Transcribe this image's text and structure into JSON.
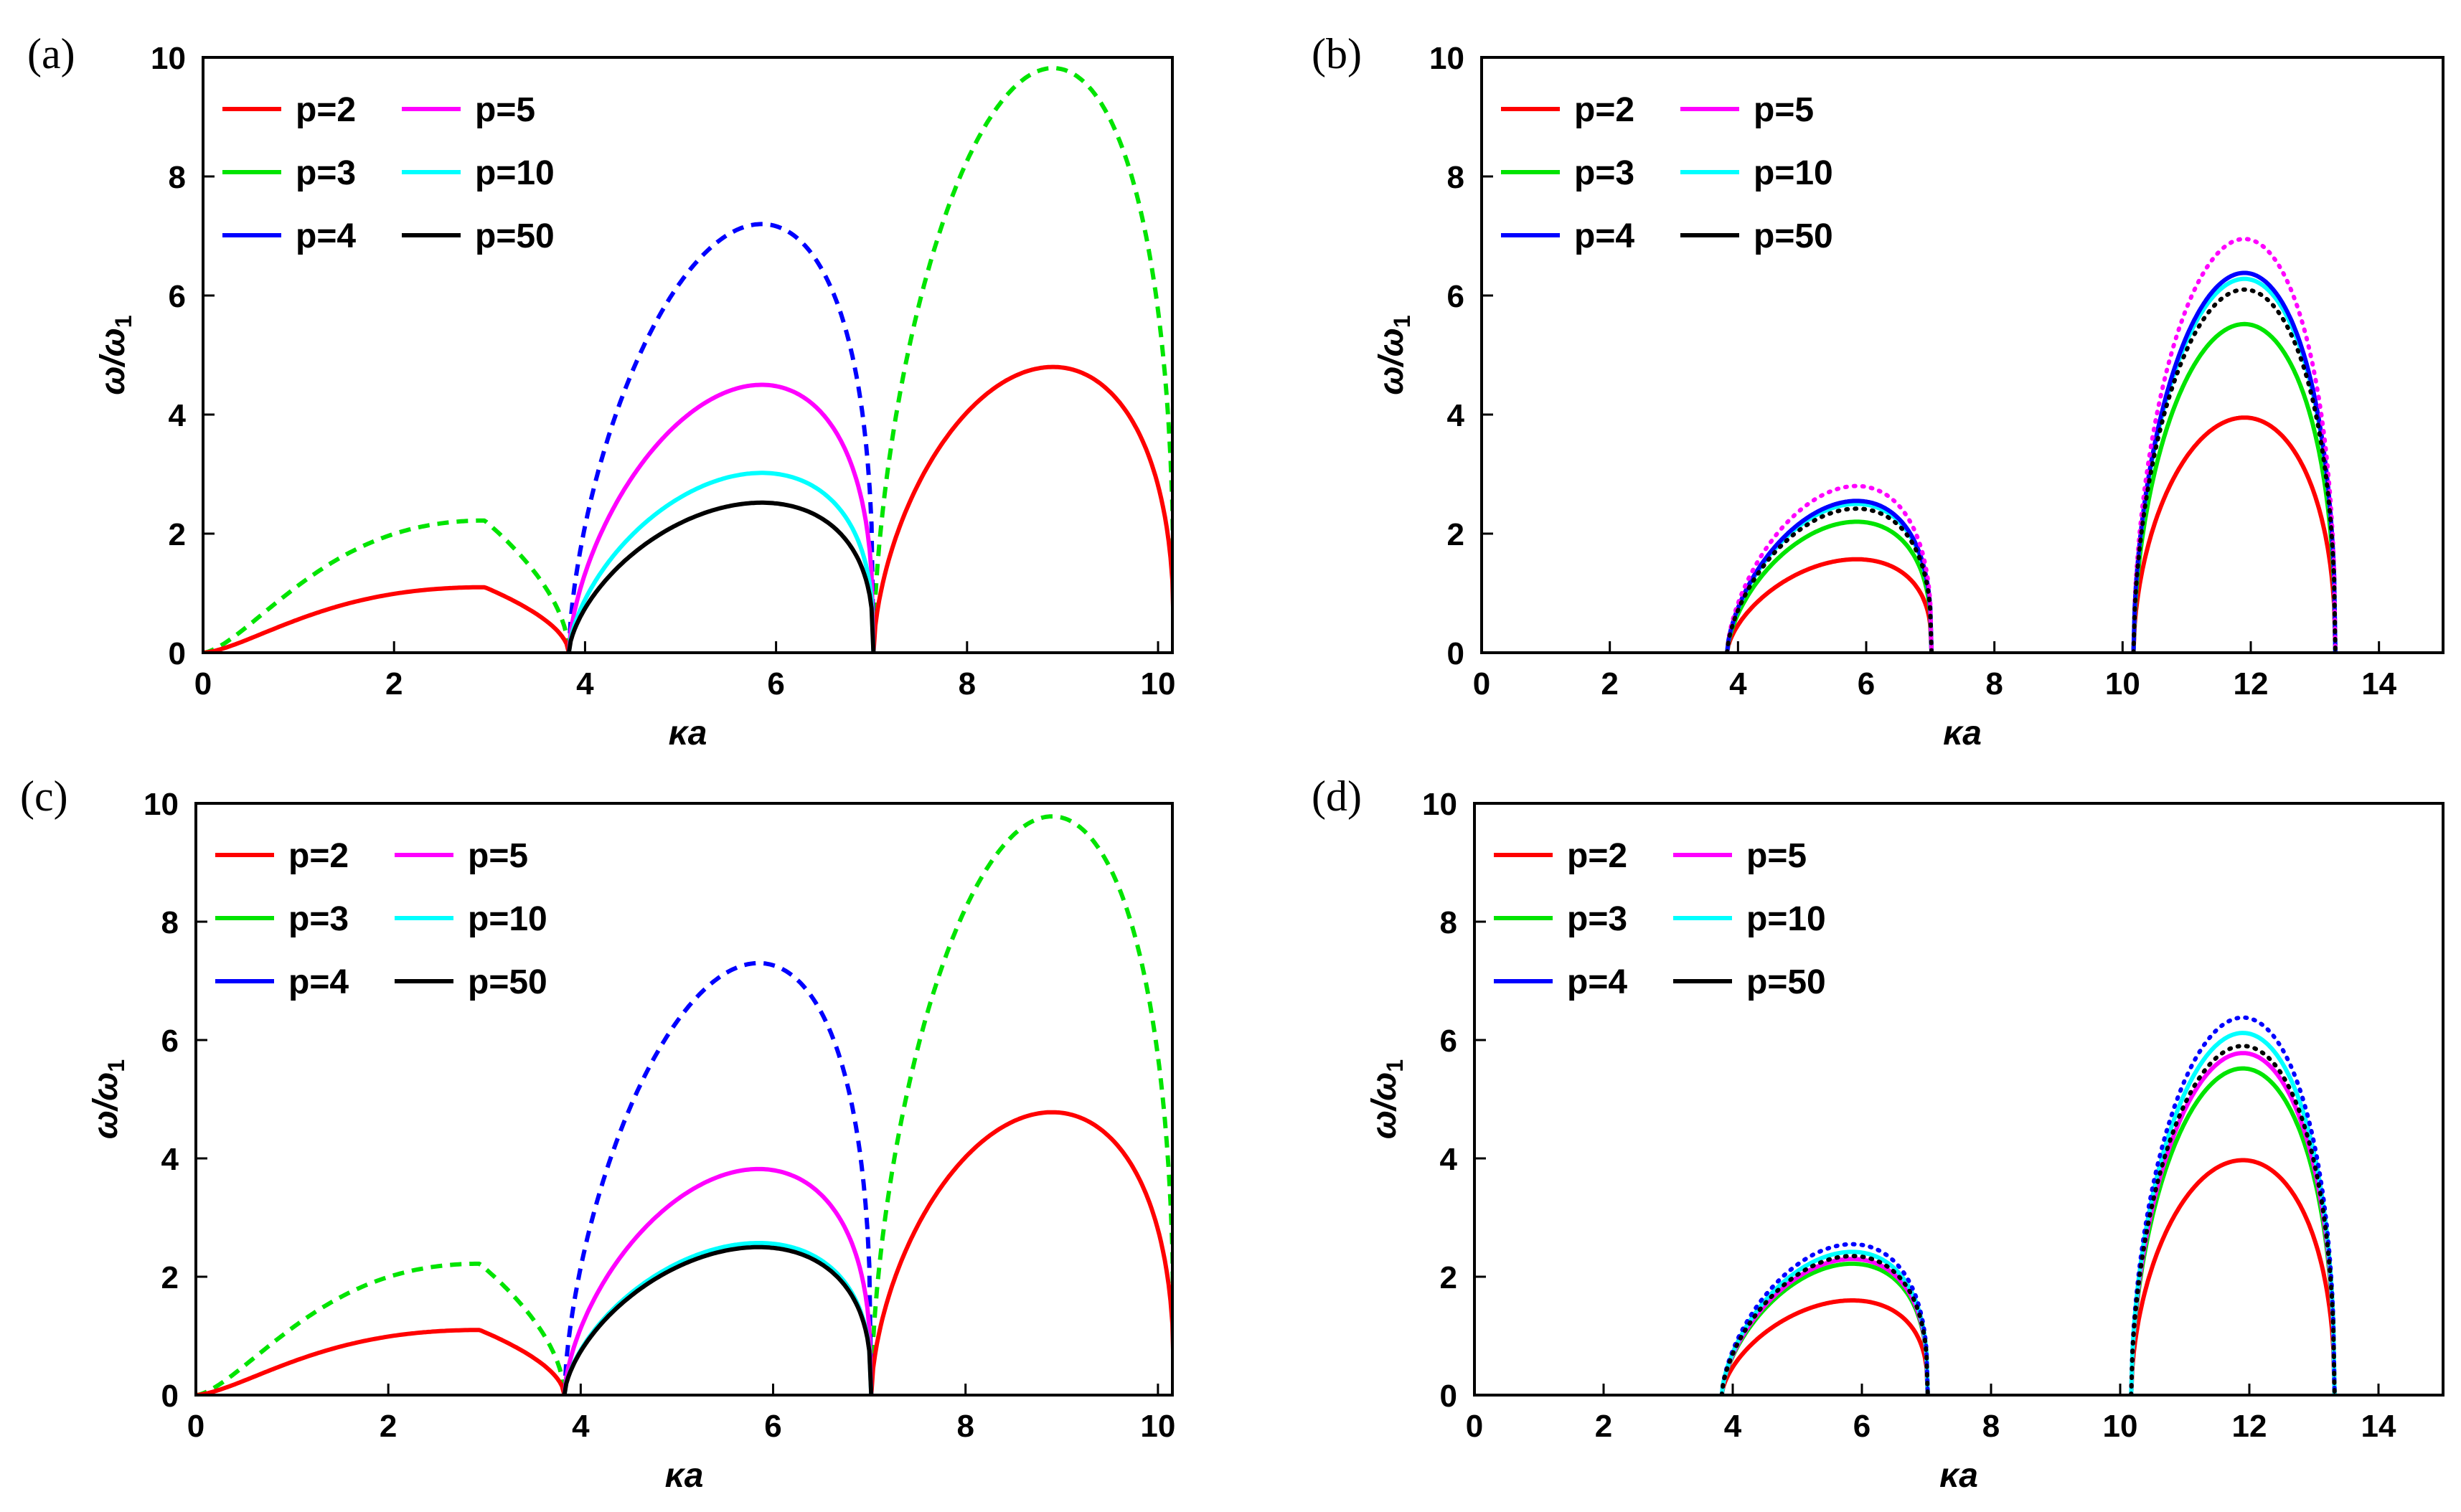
{
  "chart_data": [
    {
      "type": "line",
      "panel_label": "(a)",
      "xlabel": "κa",
      "ylabel": "ω/ω",
      "ylabel_sub": "1",
      "xlim": [
        0,
        10.15
      ],
      "ylim": [
        0,
        10
      ],
      "x_ticks": [
        0,
        2,
        4,
        6,
        8,
        10
      ],
      "y_ticks": [
        0,
        2,
        4,
        6,
        8,
        10
      ],
      "legend": [
        {
          "label": "p=2",
          "color": "#ff0000"
        },
        {
          "label": "p=3",
          "color": "#00e400"
        },
        {
          "label": "p=4",
          "color": "#0000ff"
        },
        {
          "label": "p=5",
          "color": "#ff00ff"
        },
        {
          "label": "p=10",
          "color": "#00ffff"
        },
        {
          "label": "p=50",
          "color": "#000000"
        }
      ],
      "series": [
        {
          "name": "p=3 (dashed)",
          "color": "#00e400",
          "dash": "dashed",
          "arches": [
            {
              "from": 0,
              "to": 3.83,
              "peak_x": 2.95,
              "peak_y": 2.22
            },
            {
              "from": 7.02,
              "to": 10.17,
              "peak_x": 8.9,
              "peak_y": 9.82
            }
          ]
        },
        {
          "name": "p=4 (dashed)",
          "color": "#0000ff",
          "dash": "dashed",
          "arches": [
            {
              "from": 3.83,
              "to": 7.02,
              "peak_x": 5.85,
              "peak_y": 7.2
            }
          ]
        },
        {
          "name": "p=2",
          "color": "#ff0000",
          "dash": "solid",
          "arches": [
            {
              "from": 0,
              "to": 3.83,
              "peak_x": 2.95,
              "peak_y": 1.1
            },
            {
              "from": 7.02,
              "to": 10.17,
              "peak_x": 8.9,
              "peak_y": 4.8
            }
          ]
        },
        {
          "name": "p=5",
          "color": "#ff00ff",
          "dash": "solid",
          "arches": [
            {
              "from": 3.83,
              "to": 7.02,
              "peak_x": 5.85,
              "peak_y": 4.5
            }
          ]
        },
        {
          "name": "p=10",
          "color": "#00ffff",
          "dash": "solid",
          "arches": [
            {
              "from": 3.83,
              "to": 7.02,
              "peak_x": 5.85,
              "peak_y": 3.02
            }
          ]
        },
        {
          "name": "p=50",
          "color": "#000000",
          "dash": "solid",
          "arches": [
            {
              "from": 3.83,
              "to": 7.02,
              "peak_x": 5.85,
              "peak_y": 2.52
            }
          ]
        }
      ]
    },
    {
      "type": "line",
      "panel_label": "(b)",
      "xlabel": "κa",
      "ylabel": "ω/ω",
      "ylabel_sub": "1",
      "xlim": [
        0,
        15
      ],
      "ylim": [
        0,
        10
      ],
      "x_ticks": [
        0,
        2,
        4,
        6,
        8,
        10,
        12,
        14
      ],
      "y_ticks": [
        0,
        2,
        4,
        6,
        8,
        10
      ],
      "legend": [
        {
          "label": "p=2",
          "color": "#ff0000"
        },
        {
          "label": "p=3",
          "color": "#00e400"
        },
        {
          "label": "p=4",
          "color": "#0000ff"
        },
        {
          "label": "p=5",
          "color": "#ff00ff"
        },
        {
          "label": "p=10",
          "color": "#00ffff"
        },
        {
          "label": "p=50",
          "color": "#000000"
        }
      ],
      "series": [
        {
          "name": "p=2",
          "color": "#ff0000",
          "dash": "solid",
          "arches": [
            {
              "from": 3.83,
              "to": 7.02,
              "peak_x": 5.85,
              "peak_y": 1.57
            },
            {
              "from": 10.17,
              "to": 13.32,
              "peak_x": 11.9,
              "peak_y": 3.95
            }
          ]
        },
        {
          "name": "p=3",
          "color": "#00e400",
          "dash": "solid",
          "arches": [
            {
              "from": 3.83,
              "to": 7.02,
              "peak_x": 5.85,
              "peak_y": 2.2
            },
            {
              "from": 10.17,
              "to": 13.32,
              "peak_x": 11.9,
              "peak_y": 5.52
            }
          ]
        },
        {
          "name": "p=10",
          "color": "#00ffff",
          "dash": "solid",
          "arches": [
            {
              "from": 3.83,
              "to": 7.02,
              "peak_x": 5.85,
              "peak_y": 2.5
            },
            {
              "from": 10.17,
              "to": 13.32,
              "peak_x": 11.9,
              "peak_y": 6.28
            }
          ]
        },
        {
          "name": "p=4",
          "color": "#0000ff",
          "dash": "solid",
          "arches": [
            {
              "from": 3.83,
              "to": 7.02,
              "peak_x": 5.85,
              "peak_y": 2.55
            },
            {
              "from": 10.17,
              "to": 13.32,
              "peak_x": 11.9,
              "peak_y": 6.38
            }
          ]
        },
        {
          "name": "p=5 (dotted)",
          "color": "#ff00ff",
          "dash": "dotted",
          "arches": [
            {
              "from": 3.83,
              "to": 7.02,
              "peak_x": 5.85,
              "peak_y": 2.8
            },
            {
              "from": 10.17,
              "to": 13.32,
              "peak_x": 11.9,
              "peak_y": 6.95
            }
          ]
        },
        {
          "name": "p=50 (dotted)",
          "color": "#000000",
          "dash": "dotted",
          "arches": [
            {
              "from": 3.83,
              "to": 7.02,
              "peak_x": 5.85,
              "peak_y": 2.42
            },
            {
              "from": 10.17,
              "to": 13.32,
              "peak_x": 11.9,
              "peak_y": 6.1
            }
          ]
        }
      ]
    },
    {
      "type": "line",
      "panel_label": "(c)",
      "xlabel": "κa",
      "ylabel": "ω/ω",
      "ylabel_sub": "1",
      "xlim": [
        0,
        10.15
      ],
      "ylim": [
        0,
        10
      ],
      "x_ticks": [
        0,
        2,
        4,
        6,
        8,
        10
      ],
      "y_ticks": [
        0,
        2,
        4,
        6,
        8,
        10
      ],
      "legend": [
        {
          "label": "p=2",
          "color": "#ff0000"
        },
        {
          "label": "p=3",
          "color": "#00e400"
        },
        {
          "label": "p=4",
          "color": "#0000ff"
        },
        {
          "label": "p=5",
          "color": "#ff00ff"
        },
        {
          "label": "p=10",
          "color": "#00ffff"
        },
        {
          "label": "p=50",
          "color": "#000000"
        }
      ],
      "series": [
        {
          "name": "p=3 (dashed)",
          "color": "#00e400",
          "dash": "dashed",
          "arches": [
            {
              "from": 0,
              "to": 3.83,
              "peak_x": 2.95,
              "peak_y": 2.22
            },
            {
              "from": 7.02,
              "to": 10.17,
              "peak_x": 8.9,
              "peak_y": 9.78
            }
          ]
        },
        {
          "name": "p=4 (dashed)",
          "color": "#0000ff",
          "dash": "dashed",
          "arches": [
            {
              "from": 3.83,
              "to": 7.02,
              "peak_x": 5.85,
              "peak_y": 7.3
            }
          ]
        },
        {
          "name": "p=2",
          "color": "#ff0000",
          "dash": "solid",
          "arches": [
            {
              "from": 0,
              "to": 3.83,
              "peak_x": 2.95,
              "peak_y": 1.1
            },
            {
              "from": 7.02,
              "to": 10.17,
              "peak_x": 8.9,
              "peak_y": 4.78
            }
          ]
        },
        {
          "name": "p=5",
          "color": "#ff00ff",
          "dash": "solid",
          "arches": [
            {
              "from": 3.83,
              "to": 7.02,
              "peak_x": 5.85,
              "peak_y": 3.82
            }
          ]
        },
        {
          "name": "p=10",
          "color": "#00ffff",
          "dash": "solid",
          "arches": [
            {
              "from": 3.83,
              "to": 7.02,
              "peak_x": 5.85,
              "peak_y": 2.57
            }
          ]
        },
        {
          "name": "p=50",
          "color": "#000000",
          "dash": "solid",
          "arches": [
            {
              "from": 3.83,
              "to": 7.02,
              "peak_x": 5.85,
              "peak_y": 2.5
            }
          ]
        }
      ]
    },
    {
      "type": "line",
      "panel_label": "(d)",
      "xlabel": "κa",
      "ylabel": "ω/ω",
      "ylabel_sub": "1",
      "xlim": [
        0,
        15
      ],
      "ylim": [
        0,
        10
      ],
      "x_ticks": [
        0,
        2,
        4,
        6,
        8,
        10,
        12,
        14
      ],
      "y_ticks": [
        0,
        2,
        4,
        6,
        8,
        10
      ],
      "legend": [
        {
          "label": "p=2",
          "color": "#ff0000"
        },
        {
          "label": "p=3",
          "color": "#00e400"
        },
        {
          "label": "p=4",
          "color": "#0000ff"
        },
        {
          "label": "p=5",
          "color": "#ff00ff"
        },
        {
          "label": "p=10",
          "color": "#00ffff"
        },
        {
          "label": "p=50",
          "color": "#000000"
        }
      ],
      "series": [
        {
          "name": "p=2",
          "color": "#ff0000",
          "dash": "solid",
          "arches": [
            {
              "from": 3.83,
              "to": 7.02,
              "peak_x": 5.85,
              "peak_y": 1.6
            },
            {
              "from": 10.17,
              "to": 13.32,
              "peak_x": 11.9,
              "peak_y": 3.97
            }
          ]
        },
        {
          "name": "p=3",
          "color": "#00e400",
          "dash": "solid",
          "arches": [
            {
              "from": 3.83,
              "to": 7.02,
              "peak_x": 5.85,
              "peak_y": 2.22
            },
            {
              "from": 10.17,
              "to": 13.32,
              "peak_x": 11.9,
              "peak_y": 5.52
            }
          ]
        },
        {
          "name": "p=5",
          "color": "#ff00ff",
          "dash": "solid",
          "arches": [
            {
              "from": 3.83,
              "to": 7.02,
              "peak_x": 5.85,
              "peak_y": 2.3
            },
            {
              "from": 10.17,
              "to": 13.32,
              "peak_x": 11.9,
              "peak_y": 5.78
            }
          ]
        },
        {
          "name": "p=10",
          "color": "#00ffff",
          "dash": "solid",
          "arches": [
            {
              "from": 3.83,
              "to": 7.02,
              "peak_x": 5.85,
              "peak_y": 2.42
            },
            {
              "from": 10.17,
              "to": 13.32,
              "peak_x": 11.9,
              "peak_y": 6.12
            }
          ]
        },
        {
          "name": "p=4 (dotted)",
          "color": "#0000ff",
          "dash": "dotted",
          "arches": [
            {
              "from": 3.83,
              "to": 7.02,
              "peak_x": 5.85,
              "peak_y": 2.55
            },
            {
              "from": 10.17,
              "to": 13.32,
              "peak_x": 11.9,
              "peak_y": 6.38
            }
          ]
        },
        {
          "name": "p=50 (dotted)",
          "color": "#000000",
          "dash": "dotted",
          "arches": [
            {
              "from": 3.83,
              "to": 7.02,
              "peak_x": 5.85,
              "peak_y": 2.35
            },
            {
              "from": 10.17,
              "to": 13.32,
              "peak_x": 11.9,
              "peak_y": 5.9
            }
          ]
        }
      ]
    }
  ]
}
